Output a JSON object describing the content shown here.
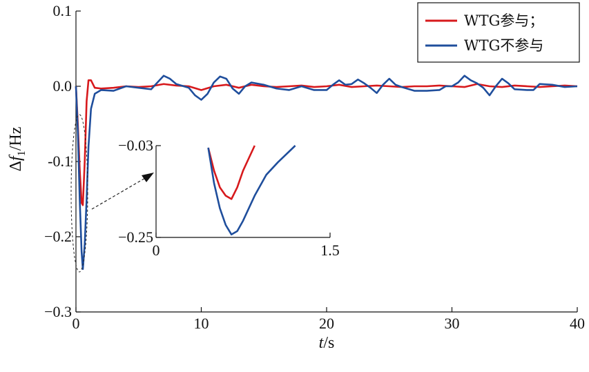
{
  "chart_data": {
    "type": "line",
    "xlabel": {
      "italic": "t",
      "rest": "/s"
    },
    "ylabel": {
      "prefix": "Δ",
      "italic": "f",
      "sub": "1",
      "rest": "/Hz"
    },
    "xlim": [
      0,
      40
    ],
    "ylim": [
      -0.3,
      0.1
    ],
    "xticks": [
      0,
      10,
      20,
      30,
      40
    ],
    "xtick_labels": [
      "0",
      "10",
      "20",
      "30",
      "40"
    ],
    "yticks": [
      0.1,
      0.0,
      -0.1,
      -0.2,
      -0.3
    ],
    "ytick_labels": [
      "0.1",
      "0.0",
      "-0.1",
      "−0.2",
      "−0.3"
    ],
    "grid": false,
    "legend_position": "top-right",
    "series": [
      {
        "name": "WTG参与；",
        "color": "#d7191c",
        "points": [
          [
            0,
            0
          ],
          [
            0.15,
            -0.05
          ],
          [
            0.3,
            -0.11
          ],
          [
            0.45,
            -0.155
          ],
          [
            0.55,
            -0.158
          ],
          [
            0.7,
            -0.1
          ],
          [
            0.85,
            -0.02
          ],
          [
            1.0,
            0.008
          ],
          [
            1.2,
            0.008
          ],
          [
            1.5,
            -0.002
          ],
          [
            2.0,
            -0.003
          ],
          [
            3,
            -0.002
          ],
          [
            4,
            0.0
          ],
          [
            5,
            -0.001
          ],
          [
            6,
            0.0
          ],
          [
            7,
            0.003
          ],
          [
            8,
            0.001
          ],
          [
            9,
            0.0
          ],
          [
            10,
            -0.005
          ],
          [
            11,
            0.0
          ],
          [
            12,
            0.002
          ],
          [
            13,
            -0.002
          ],
          [
            14,
            0.002
          ],
          [
            15,
            0.0
          ],
          [
            16,
            -0.001
          ],
          [
            17,
            0.0
          ],
          [
            18,
            0.001
          ],
          [
            19,
            -0.001
          ],
          [
            20,
            0.0
          ],
          [
            21,
            0.002
          ],
          [
            22,
            -0.001
          ],
          [
            23,
            0.0
          ],
          [
            24,
            0.001
          ],
          [
            25,
            0.0
          ],
          [
            26,
            -0.001
          ],
          [
            27,
            0.0
          ],
          [
            28,
            0.0
          ],
          [
            29,
            0.001
          ],
          [
            30,
            0.0
          ],
          [
            31,
            -0.001
          ],
          [
            32,
            0.003
          ],
          [
            33,
            0.0
          ],
          [
            34,
            -0.001
          ],
          [
            35,
            0.001
          ],
          [
            36,
            0.0
          ],
          [
            37,
            -0.001
          ],
          [
            38,
            0.0
          ],
          [
            39,
            0.001
          ],
          [
            40,
            0.0
          ]
        ]
      },
      {
        "name": "WTG不参与",
        "color": "#1f4e9c",
        "points": [
          [
            0,
            0
          ],
          [
            0.15,
            -0.06
          ],
          [
            0.3,
            -0.15
          ],
          [
            0.45,
            -0.22
          ],
          [
            0.55,
            -0.243
          ],
          [
            0.7,
            -0.21
          ],
          [
            0.85,
            -0.15
          ],
          [
            1.0,
            -0.08
          ],
          [
            1.2,
            -0.03
          ],
          [
            1.5,
            -0.01
          ],
          [
            2.0,
            -0.005
          ],
          [
            3,
            -0.006
          ],
          [
            3.5,
            -0.003
          ],
          [
            4,
            0.0
          ],
          [
            5,
            -0.002
          ],
          [
            6,
            -0.004
          ],
          [
            6.5,
            0.005
          ],
          [
            7,
            0.014
          ],
          [
            7.5,
            0.01
          ],
          [
            8,
            0.003
          ],
          [
            9,
            -0.002
          ],
          [
            9.5,
            -0.012
          ],
          [
            10,
            -0.018
          ],
          [
            10.5,
            -0.01
          ],
          [
            11,
            0.005
          ],
          [
            11.5,
            0.013
          ],
          [
            12,
            0.01
          ],
          [
            12.5,
            -0.003
          ],
          [
            13,
            -0.01
          ],
          [
            13.5,
            0.0
          ],
          [
            14,
            0.005
          ],
          [
            15,
            0.002
          ],
          [
            16,
            -0.003
          ],
          [
            17,
            -0.005
          ],
          [
            18,
            0.0
          ],
          [
            19,
            -0.005
          ],
          [
            20,
            -0.005
          ],
          [
            20.5,
            0.002
          ],
          [
            21,
            0.008
          ],
          [
            21.5,
            0.002
          ],
          [
            22,
            0.003
          ],
          [
            22.5,
            0.009
          ],
          [
            23,
            0.004
          ],
          [
            23.5,
            -0.002
          ],
          [
            24,
            -0.009
          ],
          [
            24.5,
            0.002
          ],
          [
            25,
            0.01
          ],
          [
            25.5,
            0.002
          ],
          [
            26,
            -0.001
          ],
          [
            27,
            -0.006
          ],
          [
            28,
            -0.006
          ],
          [
            29,
            -0.005
          ],
          [
            29.5,
            0.0
          ],
          [
            30,
            0.0
          ],
          [
            30.5,
            0.005
          ],
          [
            31,
            0.014
          ],
          [
            31.5,
            0.008
          ],
          [
            32,
            0.004
          ],
          [
            32.5,
            -0.002
          ],
          [
            33,
            -0.012
          ],
          [
            33.5,
            0.0
          ],
          [
            34,
            0.01
          ],
          [
            34.5,
            0.004
          ],
          [
            35,
            -0.004
          ],
          [
            36,
            -0.005
          ],
          [
            36.5,
            -0.005
          ],
          [
            37,
            0.003
          ],
          [
            38,
            0.002
          ],
          [
            39,
            -0.001
          ],
          [
            40,
            0.0
          ]
        ]
      }
    ],
    "inset": {
      "xlim": [
        0,
        1.5
      ],
      "ylim": [
        -0.25,
        -0.03
      ],
      "xtick_labels": [
        "0",
        "1.5"
      ],
      "ytick_labels": [
        "−0.03",
        "−0.25"
      ],
      "series": [
        {
          "name": "WTG参与；",
          "color": "#d7191c",
          "points": [
            [
              0.45,
              -0.035
            ],
            [
              0.5,
              -0.09
            ],
            [
              0.55,
              -0.13
            ],
            [
              0.6,
              -0.15
            ],
            [
              0.65,
              -0.158
            ],
            [
              0.7,
              -0.13
            ],
            [
              0.75,
              -0.09
            ],
            [
              0.8,
              -0.06
            ],
            [
              0.85,
              -0.03
            ]
          ]
        },
        {
          "name": "WTG不参与",
          "color": "#1f4e9c",
          "points": [
            [
              0.45,
              -0.035
            ],
            [
              0.5,
              -0.12
            ],
            [
              0.55,
              -0.18
            ],
            [
              0.6,
              -0.22
            ],
            [
              0.65,
              -0.243
            ],
            [
              0.7,
              -0.235
            ],
            [
              0.75,
              -0.21
            ],
            [
              0.85,
              -0.15
            ],
            [
              0.95,
              -0.1
            ],
            [
              1.05,
              -0.07
            ],
            [
              1.2,
              -0.03
            ]
          ]
        }
      ]
    }
  }
}
